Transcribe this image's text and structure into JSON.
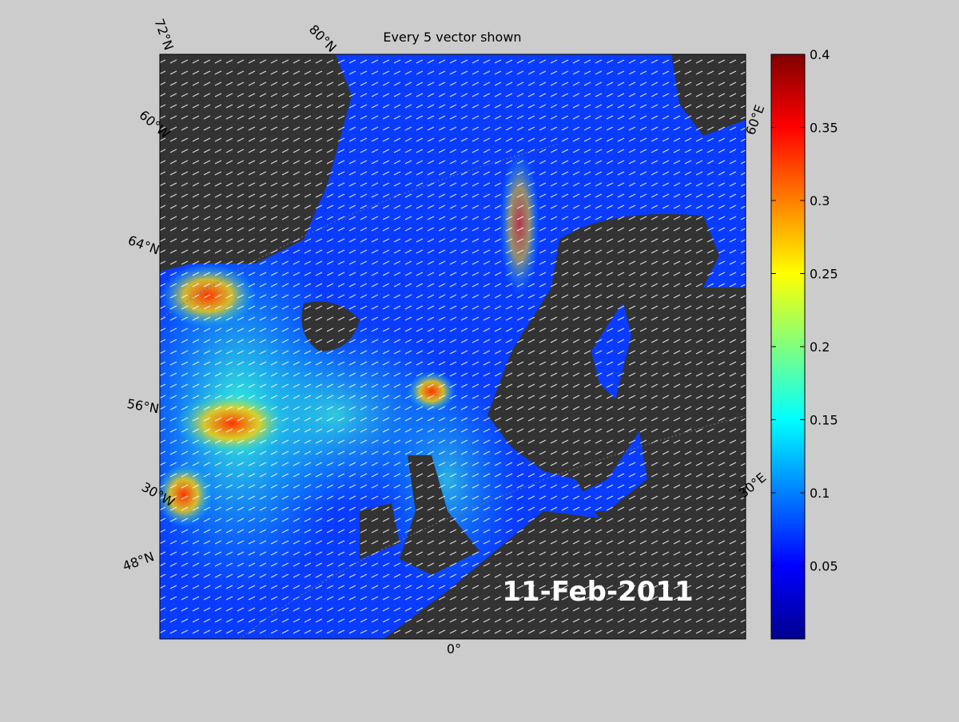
{
  "title": "Every 5 vector shown",
  "date_label": "11-Feb-2011",
  "graticule_labels": [
    "72°N",
    "80°N",
    "60°W",
    "64°N",
    "56°N",
    "30°W",
    "48°N",
    "0°",
    "30°E",
    "60°E"
  ],
  "colorbar": {
    "ylim": [
      0,
      0.4
    ],
    "yticks": [
      0.05,
      0.1,
      0.15,
      0.2,
      0.25,
      0.3,
      0.35,
      0.4
    ]
  }
}
